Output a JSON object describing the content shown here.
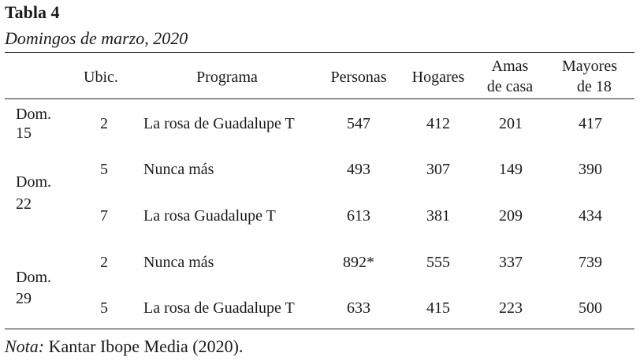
{
  "title": "Tabla 4",
  "subtitle": "Domingos de marzo, 2020",
  "header": {
    "ubic": "Ubic.",
    "programa": "Programa",
    "personas": "Personas",
    "hogares": "Hogares",
    "amas_line1": "Amas",
    "amas_line2": "de casa",
    "mayores_line1": "Mayores",
    "mayores_line2": "de 18"
  },
  "groups": [
    {
      "line1": "Dom.",
      "line2": "15"
    },
    {
      "line1": "Dom.",
      "line2": "22"
    },
    {
      "line1": "Dom.",
      "line2": "29"
    }
  ],
  "rows": [
    {
      "ubic": "2",
      "programa": "La rosa de Guadalupe T",
      "personas": "547",
      "hogares": "412",
      "amas": "201",
      "mayores": "417"
    },
    {
      "ubic": "5",
      "programa": "Nunca más",
      "personas": "493",
      "hogares": "307",
      "amas": "149",
      "mayores": "390"
    },
    {
      "ubic": "7",
      "programa": "La rosa Guadalupe T",
      "personas": "613",
      "hogares": "381",
      "amas": "209",
      "mayores": "434"
    },
    {
      "ubic": "2",
      "programa": "Nunca más",
      "personas": "892*",
      "hogares": "555",
      "amas": "337",
      "mayores": "739"
    },
    {
      "ubic": "5",
      "programa": "La rosa de Guadalupe T",
      "personas": "633",
      "hogares": "415",
      "amas": "223",
      "mayores": "500"
    }
  ],
  "note": {
    "label": "Nota:",
    "text": " Kantar Ibope Media (2020)."
  }
}
